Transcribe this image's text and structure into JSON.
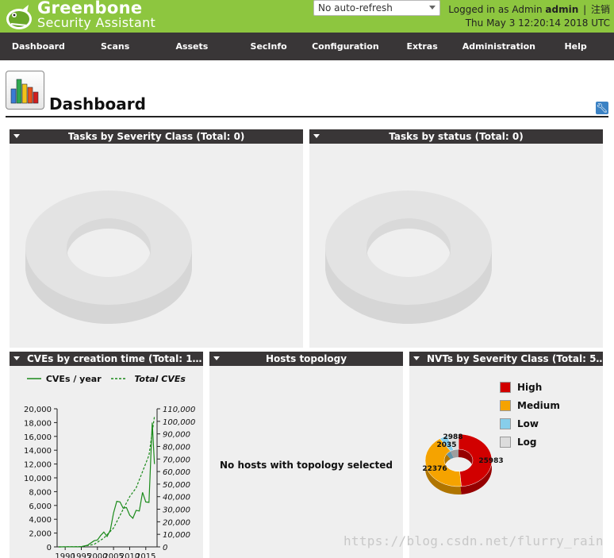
{
  "header": {
    "brand_line1": "Greenbone",
    "brand_line2": "Security Assistant",
    "refresh_select": "No auto-refresh",
    "logged_in_as": "Logged in as",
    "role": "Admin",
    "user": "admin",
    "separator": "|",
    "logout": "注销",
    "datetime": "Thu May 3 12:20:14 2018 UTC"
  },
  "nav": [
    "Dashboard",
    "Scans",
    "Assets",
    "SecInfo",
    "Configuration",
    "Extras",
    "Administration",
    "Help"
  ],
  "page": {
    "title": "Dashboard"
  },
  "panels": {
    "tasks_severity": {
      "title": "Tasks by Severity Class (Total: 0)"
    },
    "tasks_status": {
      "title": "Tasks by status (Total: 0)"
    },
    "cves": {
      "title": "CVEs by creation time (Total: 1…",
      "legend_year": "CVEs / year",
      "legend_total": "Total CVEs"
    },
    "hosts": {
      "title": "Hosts topology",
      "empty_message": "No hosts with topology selected"
    },
    "nvts": {
      "title": "NVTs by Severity Class (Total: 5…"
    }
  },
  "chart_data": [
    {
      "type": "line",
      "title": "CVEs by creation time (Total: 1…",
      "x": [
        1990,
        1995,
        2000,
        2005,
        2010,
        2015
      ],
      "x_tick_labels": [
        "1990",
        "1995",
        "2000",
        "2005",
        "2010",
        "2015"
      ],
      "ylim_left": [
        0,
        20000
      ],
      "y_ticks_left": [
        "20,000",
        "18,000",
        "16,000",
        "14,000",
        "12,000",
        "10,000",
        "8,000",
        "6,000",
        "4,000",
        "2,000",
        "0"
      ],
      "ylim_right": [
        0,
        110000
      ],
      "y_ticks_right": [
        "110,000",
        "100,000",
        "90,000",
        "80,000",
        "70,000",
        "60,000",
        "50,000",
        "40,000",
        "30,000",
        "20,000",
        "10,000",
        "0"
      ],
      "series": [
        {
          "name": "CVEs / year",
          "axis": "left",
          "color": "#1a8a1a",
          "style": "solid",
          "points": [
            [
              1988,
              0
            ],
            [
              1995,
              30
            ],
            [
              1997,
              250
            ],
            [
              1999,
              900
            ],
            [
              2000,
              1000
            ],
            [
              2001,
              1650
            ],
            [
              2002,
              2150
            ],
            [
              2003,
              1500
            ],
            [
              2004,
              2450
            ],
            [
              2005,
              4900
            ],
            [
              2006,
              6600
            ],
            [
              2007,
              6500
            ],
            [
              2008,
              5600
            ],
            [
              2009,
              5700
            ],
            [
              2010,
              4600
            ],
            [
              2011,
              4150
            ],
            [
              2012,
              5300
            ],
            [
              2013,
              5200
            ],
            [
              2014,
              7900
            ],
            [
              2015,
              6500
            ],
            [
              2016,
              6450
            ],
            [
              2017,
              18000
            ],
            [
              2017.7,
              12000
            ]
          ]
        },
        {
          "name": "Total CVEs",
          "axis": "right",
          "color": "#1a8a1a",
          "style": "dashed",
          "points": [
            [
              1988,
              0
            ],
            [
              1995,
              200
            ],
            [
              1999,
              2000
            ],
            [
              2002,
              7000
            ],
            [
              2005,
              15000
            ],
            [
              2008,
              30000
            ],
            [
              2010,
              40000
            ],
            [
              2012,
              47000
            ],
            [
              2014,
              60000
            ],
            [
              2016,
              73000
            ],
            [
              2017.7,
              104000
            ]
          ]
        }
      ]
    },
    {
      "type": "pie",
      "title": "NVTs by Severity Class (Total: 5…",
      "categories": [
        "High",
        "Medium",
        "Low",
        "Log"
      ],
      "values": [
        25983,
        22376,
        2035,
        2988
      ],
      "colors": [
        "#d10000",
        "#f5a300",
        "#87ceeb",
        "#dcdcdc"
      ],
      "legend_position": "top-right"
    },
    {
      "type": "pie",
      "title": "Tasks by Severity Class (Total: 0)",
      "categories": [],
      "values": []
    },
    {
      "type": "pie",
      "title": "Tasks by status (Total: 0)",
      "categories": [],
      "values": []
    }
  ],
  "watermark": "https://blog.csdn.net/flurry_rain"
}
